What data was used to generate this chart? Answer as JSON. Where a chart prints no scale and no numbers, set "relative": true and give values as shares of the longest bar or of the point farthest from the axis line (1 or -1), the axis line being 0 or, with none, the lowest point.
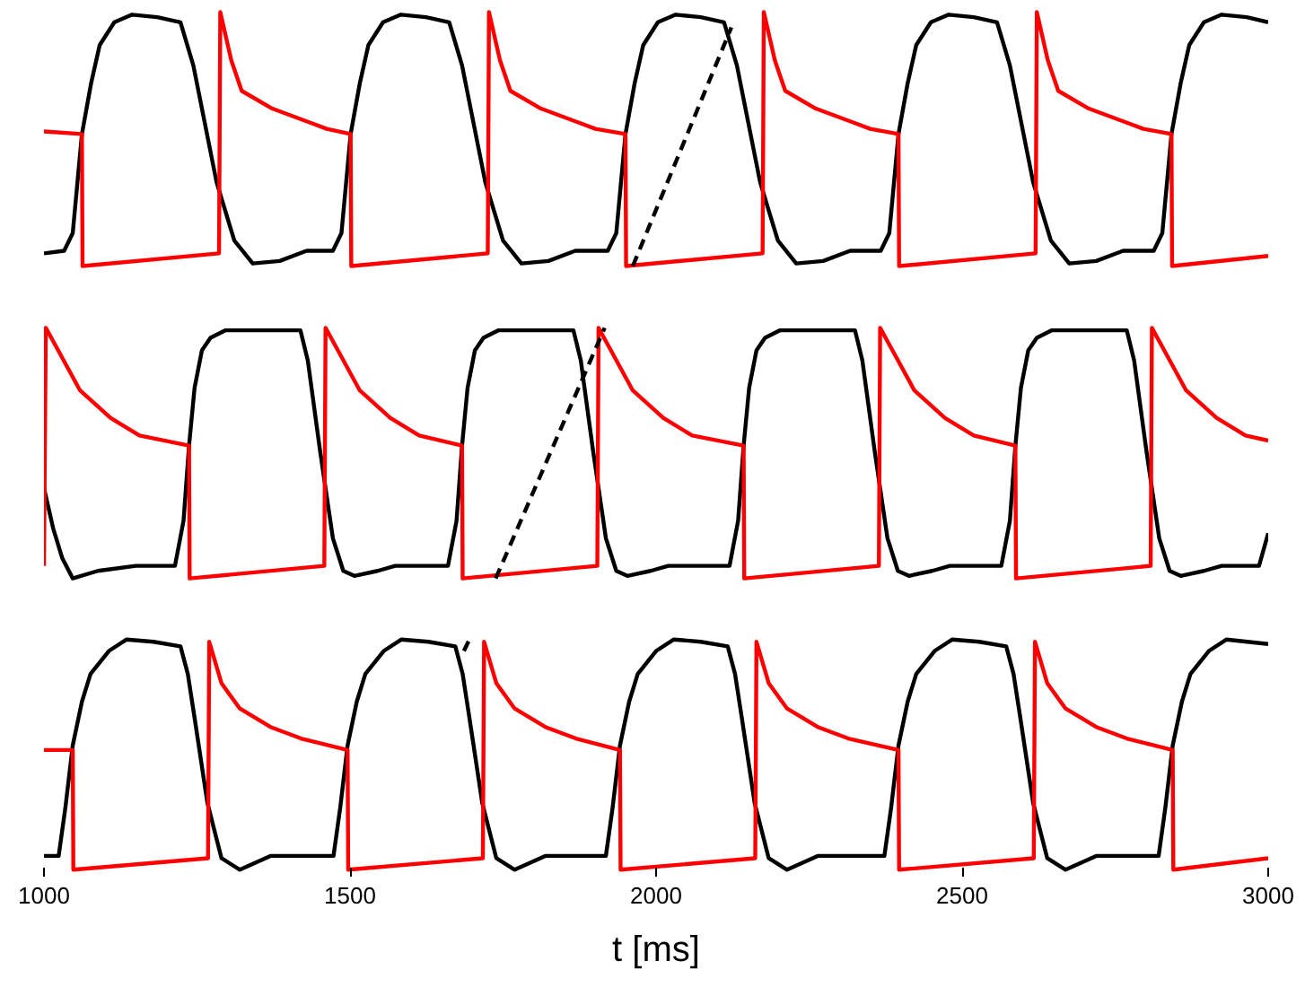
{
  "chart_data": [
    {
      "type": "line",
      "relative": true,
      "xlim": [
        1000,
        3000
      ],
      "tick_labels": false,
      "series": [
        {
          "color": "#000000",
          "x": [
            1000,
            1033,
            1047,
            1062,
            1077,
            1091,
            1115,
            1144,
            1185,
            1223,
            1244,
            1282,
            1311,
            1341,
            1385,
            1429,
            1464,
            1472,
            1486,
            1501,
            1516,
            1530,
            1554,
            1583,
            1624,
            1662,
            1683,
            1721,
            1750,
            1780,
            1824,
            1868,
            1903,
            1921,
            1935,
            1950,
            1965,
            1979,
            2003,
            2032,
            2073,
            2111,
            2132,
            2170,
            2199,
            2229,
            2273,
            2317,
            2352,
            2367,
            2381,
            2396,
            2411,
            2425,
            2449,
            2478,
            2519,
            2557,
            2578,
            2616,
            2645,
            2675,
            2719,
            2763,
            2798,
            2813,
            2827,
            2842,
            2857,
            2871,
            2895,
            2924,
            2965,
            3000
          ],
          "values": [
            0.05,
            0.06,
            0.13,
            0.52,
            0.72,
            0.87,
            0.96,
            0.99,
            0.98,
            0.96,
            0.79,
            0.33,
            0.1,
            0.01,
            0.02,
            0.06,
            0.06,
            0.06,
            0.13,
            0.52,
            0.72,
            0.87,
            0.96,
            0.99,
            0.98,
            0.96,
            0.79,
            0.33,
            0.1,
            0.01,
            0.02,
            0.06,
            0.06,
            0.06,
            0.13,
            0.52,
            0.72,
            0.87,
            0.96,
            0.99,
            0.98,
            0.96,
            0.79,
            0.33,
            0.1,
            0.01,
            0.02,
            0.06,
            0.06,
            0.06,
            0.13,
            0.52,
            0.72,
            0.87,
            0.96,
            0.99,
            0.98,
            0.96,
            0.79,
            0.33,
            0.1,
            0.01,
            0.02,
            0.06,
            0.06,
            0.06,
            0.13,
            0.52,
            0.72,
            0.87,
            0.96,
            0.99,
            0.98,
            0.96
          ]
        },
        {
          "color": "#ff0000",
          "x": [
            1000,
            1062,
            1063,
            1286,
            1288,
            1306,
            1323,
            1373,
            1440,
            1462,
            1501,
            1502,
            1725,
            1727,
            1745,
            1762,
            1812,
            1879,
            1901,
            1950,
            1951,
            2174,
            2176,
            2194,
            2211,
            2261,
            2328,
            2350,
            2396,
            2397,
            2620,
            2622,
            2640,
            2657,
            2707,
            2774,
            2796,
            2842,
            2843,
            3000
          ],
          "values": [
            0.53,
            0.52,
            0,
            0.05,
            1.0,
            0.81,
            0.69,
            0.62,
            0.56,
            0.54,
            0.52,
            0,
            0.05,
            1.0,
            0.81,
            0.69,
            0.62,
            0.56,
            0.54,
            0.52,
            0,
            0.05,
            1.0,
            0.81,
            0.69,
            0.62,
            0.56,
            0.54,
            0.52,
            0,
            0.05,
            1.0,
            0.81,
            0.69,
            0.62,
            0.56,
            0.54,
            0.52,
            0,
            0.04
          ]
        },
        {
          "color": "#000000",
          "line_style": "dashed",
          "x": [
            1962,
            2123
          ],
          "values": [
            0,
            0.94
          ]
        }
      ]
    },
    {
      "type": "line",
      "relative": true,
      "xlim": [
        1000,
        3000
      ],
      "tick_labels": false,
      "series": [
        {
          "color": "#000000",
          "x": [
            1000,
            1015,
            1030,
            1047,
            1088,
            1150,
            1214,
            1228,
            1237,
            1246,
            1258,
            1272,
            1296,
            1419,
            1431,
            1451,
            1472,
            1489,
            1507,
            1545,
            1574,
            1660,
            1674,
            1683,
            1692,
            1704,
            1718,
            1742,
            1865,
            1877,
            1897,
            1918,
            1935,
            1953,
            1991,
            2020,
            2120,
            2134,
            2143,
            2152,
            2164,
            2178,
            2202,
            2325,
            2337,
            2357,
            2378,
            2395,
            2413,
            2451,
            2480,
            2564,
            2578,
            2587,
            2596,
            2608,
            2622,
            2646,
            2769,
            2781,
            2801,
            2822,
            2839,
            2857,
            2895,
            2924,
            2985,
            3000
          ],
          "values": [
            0.36,
            0.2,
            0.08,
            0.0,
            0.03,
            0.05,
            0.05,
            0.23,
            0.53,
            0.76,
            0.91,
            0.96,
            0.99,
            0.99,
            0.87,
            0.51,
            0.16,
            0.03,
            0.01,
            0.03,
            0.05,
            0.05,
            0.23,
            0.53,
            0.76,
            0.91,
            0.96,
            0.99,
            0.99,
            0.87,
            0.51,
            0.16,
            0.03,
            0.01,
            0.03,
            0.05,
            0.05,
            0.23,
            0.53,
            0.76,
            0.91,
            0.96,
            0.99,
            0.99,
            0.87,
            0.51,
            0.16,
            0.03,
            0.01,
            0.03,
            0.05,
            0.05,
            0.23,
            0.53,
            0.76,
            0.91,
            0.96,
            0.99,
            0.99,
            0.87,
            0.51,
            0.16,
            0.03,
            0.01,
            0.03,
            0.05,
            0.05,
            0.18
          ]
        },
        {
          "color": "#ff0000",
          "x": [
            1000,
            1003,
            1021,
            1059,
            1109,
            1156,
            1237,
            1238,
            1458,
            1460,
            1478,
            1516,
            1566,
            1613,
            1683,
            1684,
            1904,
            1906,
            1924,
            1962,
            2012,
            2059,
            2143,
            2144,
            2364,
            2366,
            2384,
            2422,
            2472,
            2519,
            2587,
            2588,
            2808,
            2810,
            2828,
            2866,
            2916,
            2963,
            3000
          ],
          "values": [
            0.05,
            1.0,
            0.92,
            0.75,
            0.64,
            0.57,
            0.53,
            0,
            0.05,
            1.0,
            0.92,
            0.75,
            0.64,
            0.57,
            0.53,
            0,
            0.05,
            1.0,
            0.92,
            0.75,
            0.64,
            0.57,
            0.53,
            0,
            0.05,
            1.0,
            0.92,
            0.75,
            0.64,
            0.57,
            0.53,
            0,
            0.05,
            1.0,
            0.92,
            0.75,
            0.64,
            0.57,
            0.55
          ]
        },
        {
          "color": "#000000",
          "line_style": "dashed",
          "x": [
            1738,
            1916
          ],
          "values": [
            0,
            1.0
          ]
        }
      ]
    },
    {
      "type": "line",
      "relative": true,
      "xlim": [
        1000,
        3000
      ],
      "xticks": [
        1000,
        1500,
        2000,
        2500,
        3000
      ],
      "xlabel": "t [ms]",
      "tick_labels": "x",
      "series": [
        {
          "color": "#000000",
          "x": [
            1000,
            1024,
            1035,
            1047,
            1062,
            1076,
            1106,
            1135,
            1179,
            1223,
            1235,
            1246,
            1267,
            1290,
            1320,
            1370,
            1458,
            1473,
            1484,
            1496,
            1511,
            1525,
            1555,
            1584,
            1628,
            1672,
            1684,
            1695,
            1716,
            1739,
            1769,
            1819,
            1907,
            1918,
            1929,
            1941,
            1956,
            1970,
            2000,
            2029,
            2073,
            2117,
            2129,
            2140,
            2161,
            2184,
            2214,
            2264,
            2352,
            2373,
            2384,
            2396,
            2411,
            2425,
            2455,
            2484,
            2528,
            2572,
            2584,
            2595,
            2616,
            2639,
            2669,
            2719,
            2807,
            2821,
            2832,
            2844,
            2859,
            2873,
            2903,
            2932,
            3000
          ],
          "values": [
            0.06,
            0.06,
            0.27,
            0.54,
            0.73,
            0.85,
            0.95,
            1.0,
            0.99,
            0.97,
            0.85,
            0.66,
            0.29,
            0.05,
            0,
            0.06,
            0.06,
            0.06,
            0.27,
            0.54,
            0.73,
            0.85,
            0.95,
            1.0,
            0.99,
            0.97,
            0.85,
            0.66,
            0.29,
            0.05,
            0,
            0.06,
            0.06,
            0.06,
            0.27,
            0.54,
            0.73,
            0.85,
            0.95,
            1.0,
            0.99,
            0.97,
            0.85,
            0.66,
            0.29,
            0.05,
            0,
            0.06,
            0.06,
            0.06,
            0.27,
            0.54,
            0.73,
            0.85,
            0.95,
            1.0,
            0.99,
            0.97,
            0.85,
            0.66,
            0.29,
            0.05,
            0,
            0.06,
            0.06,
            0.06,
            0.27,
            0.54,
            0.73,
            0.85,
            0.95,
            1.0,
            0.98
          ]
        },
        {
          "color": "#ff0000",
          "x": [
            1000,
            1047,
            1048,
            1268,
            1270,
            1290,
            1320,
            1370,
            1420,
            1496,
            1497,
            1717,
            1719,
            1739,
            1769,
            1819,
            1869,
            1941,
            1942,
            2162,
            2164,
            2184,
            2214,
            2264,
            2314,
            2396,
            2397,
            2617,
            2619,
            2639,
            2669,
            2719,
            2769,
            2844,
            2845,
            3000
          ],
          "values": [
            0.52,
            0.52,
            0,
            0.05,
            0.99,
            0.81,
            0.7,
            0.62,
            0.57,
            0.52,
            0,
            0.05,
            0.99,
            0.81,
            0.7,
            0.62,
            0.57,
            0.52,
            0,
            0.05,
            0.99,
            0.81,
            0.7,
            0.62,
            0.57,
            0.52,
            0,
            0.05,
            0.99,
            0.81,
            0.7,
            0.62,
            0.57,
            0.52,
            0,
            0.05
          ]
        },
        {
          "color": "#000000",
          "line_style": "dashed",
          "x": [
            1686,
            1695
          ],
          "values": [
            0.95,
            1.0
          ]
        }
      ]
    }
  ]
}
